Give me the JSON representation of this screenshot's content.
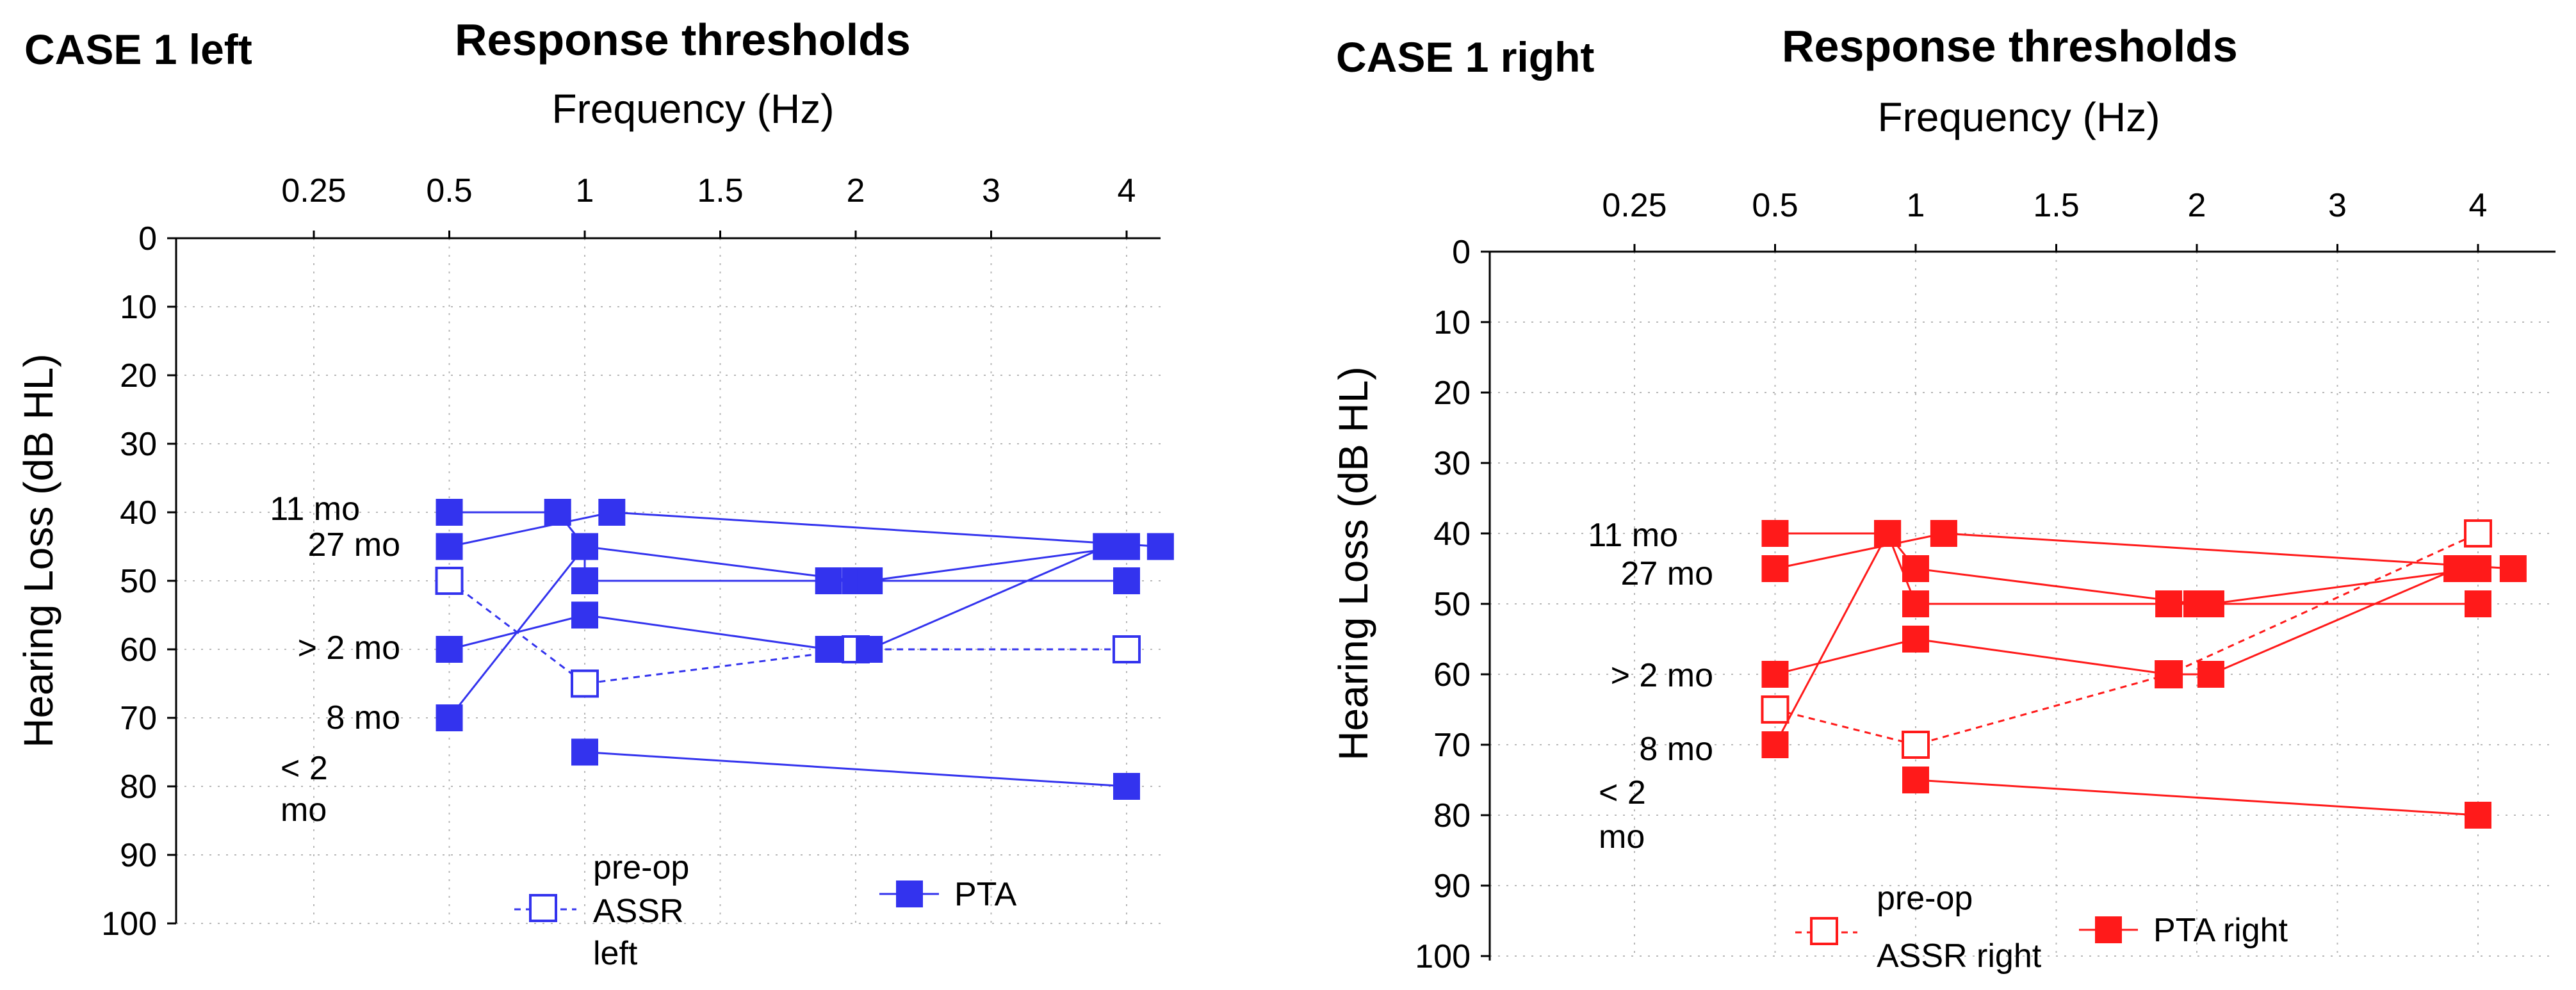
{
  "xlabel": "Frequency (Hz)",
  "ylabel": "Hearing Loss (dB HL)",
  "x_ticks": [
    "0.25",
    "0.5",
    "1",
    "1.5",
    "2",
    "3",
    "4"
  ],
  "y_ticks": [
    0,
    10,
    20,
    30,
    40,
    50,
    60,
    70,
    80,
    90,
    100
  ],
  "annotations": {
    "a11mo": "11 mo",
    "a27mo": "27 mo",
    "a2mo": "> 2 mo",
    "a8mo": "8 mo",
    "alt2_line1": "< 2",
    "alt2_line2": "mo"
  },
  "legend_left": {
    "assr_line1": "pre-op",
    "assr_line2": "ASSR",
    "assr_line3": "left",
    "pta": "PTA"
  },
  "legend_right": {
    "assr_line1": "pre-op",
    "assr_line2": "ASSR right",
    "pta": "PTA right"
  },
  "chart_data": [
    {
      "type": "line",
      "case_title": "CASE 1 left",
      "title": "Response thresholds",
      "xlabel": "Frequency (Hz)",
      "ylabel": "Hearing Loss (dB HL)",
      "categories": [
        "0.25",
        "0.5",
        "1",
        "1.5",
        "2",
        "3",
        "4"
      ],
      "ylim": [
        0,
        100
      ],
      "y_inverted": true,
      "color": "#3333ee",
      "series": [
        {
          "name": "pre-op ASSR left",
          "style": "dashed-open",
          "points": [
            [
              0.5,
              50
            ],
            [
              1,
              65
            ],
            [
              2,
              60
            ],
            [
              4,
              60
            ]
          ]
        },
        {
          "name": "11 mo",
          "style": "solid-filled",
          "points": [
            [
              0.5,
              40
            ],
            [
              0.9,
              40
            ],
            [
              1,
              45
            ],
            [
              2,
              50
            ],
            [
              4,
              50
            ]
          ]
        },
        {
          "name": "27 mo",
          "style": "solid-filled",
          "points": [
            [
              0.5,
              45
            ],
            [
              1.1,
              40
            ],
            [
              4.25,
              45
            ]
          ]
        },
        {
          "name": "> 2 mo",
          "style": "solid-filled",
          "points": [
            [
              0.5,
              60
            ],
            [
              1,
              55
            ],
            [
              1.9,
              60
            ],
            [
              2.1,
              60
            ],
            [
              3.85,
              45
            ]
          ]
        },
        {
          "name": "8 mo",
          "style": "solid-filled",
          "points": [
            [
              0.5,
              70
            ],
            [
              1,
              45
            ],
            [
              1,
              50
            ],
            [
              1.9,
              50
            ],
            [
              2.1,
              50
            ],
            [
              4,
              45
            ]
          ]
        },
        {
          "name": "< 2 mo",
          "style": "solid-filled",
          "points": [
            [
              1,
              75
            ],
            [
              4,
              80
            ]
          ]
        },
        {
          "name": "PTA",
          "style": "legend-only"
        }
      ]
    },
    {
      "type": "line",
      "case_title": "CASE 1 right",
      "title": "Response thresholds",
      "xlabel": "Frequency (Hz)",
      "ylabel": "Hearing Loss (dB HL)",
      "categories": [
        "0.25",
        "0.5",
        "1",
        "1.5",
        "2",
        "3",
        "4"
      ],
      "ylim": [
        0,
        100
      ],
      "y_inverted": true,
      "color": "#ff1a1a",
      "series": [
        {
          "name": "pre-op ASSR right",
          "style": "dashed-open",
          "points": [
            [
              0.5,
              65
            ],
            [
              1,
              70
            ],
            [
              1.9,
              60
            ],
            [
              4,
              40
            ]
          ]
        },
        {
          "name": "11 mo",
          "style": "solid-filled",
          "points": [
            [
              0.5,
              40
            ],
            [
              0.9,
              40
            ],
            [
              1,
              45
            ],
            [
              2,
              50
            ],
            [
              4,
              50
            ]
          ]
        },
        {
          "name": "27 mo",
          "style": "solid-filled",
          "points": [
            [
              0.5,
              45
            ],
            [
              1.1,
              40
            ],
            [
              4.25,
              45
            ]
          ]
        },
        {
          "name": "> 2 mo",
          "style": "solid-filled",
          "points": [
            [
              0.5,
              60
            ],
            [
              1,
              55
            ],
            [
              1.9,
              60
            ],
            [
              2.1,
              60
            ],
            [
              3.85,
              45
            ]
          ]
        },
        {
          "name": "8 mo",
          "style": "solid-filled",
          "points": [
            [
              0.5,
              70
            ],
            [
              0.9,
              40
            ],
            [
              1,
              50
            ],
            [
              1.9,
              50
            ],
            [
              2.1,
              50
            ],
            [
              4,
              45
            ]
          ]
        },
        {
          "name": "< 2 mo",
          "style": "solid-filled",
          "points": [
            [
              1,
              75
            ],
            [
              4,
              80
            ]
          ]
        },
        {
          "name": "PTA right",
          "style": "legend-only"
        }
      ]
    }
  ]
}
